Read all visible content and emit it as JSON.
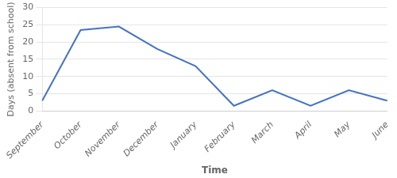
{
  "chart_data": {
    "type": "line",
    "categories": [
      "September",
      "October",
      "November",
      "December",
      "January",
      "February",
      "March",
      "April",
      "May",
      "June"
    ],
    "values": [
      3,
      23.5,
      24.5,
      18,
      13,
      1.5,
      6,
      1.5,
      6,
      3
    ],
    "color": "#4472C4",
    "xlabel": "Time",
    "ylabel": "Days (absent from school)",
    "ylim": [
      0,
      30
    ],
    "yticks": [
      0,
      5,
      10,
      15,
      20,
      25,
      30
    ],
    "grid": true
  }
}
